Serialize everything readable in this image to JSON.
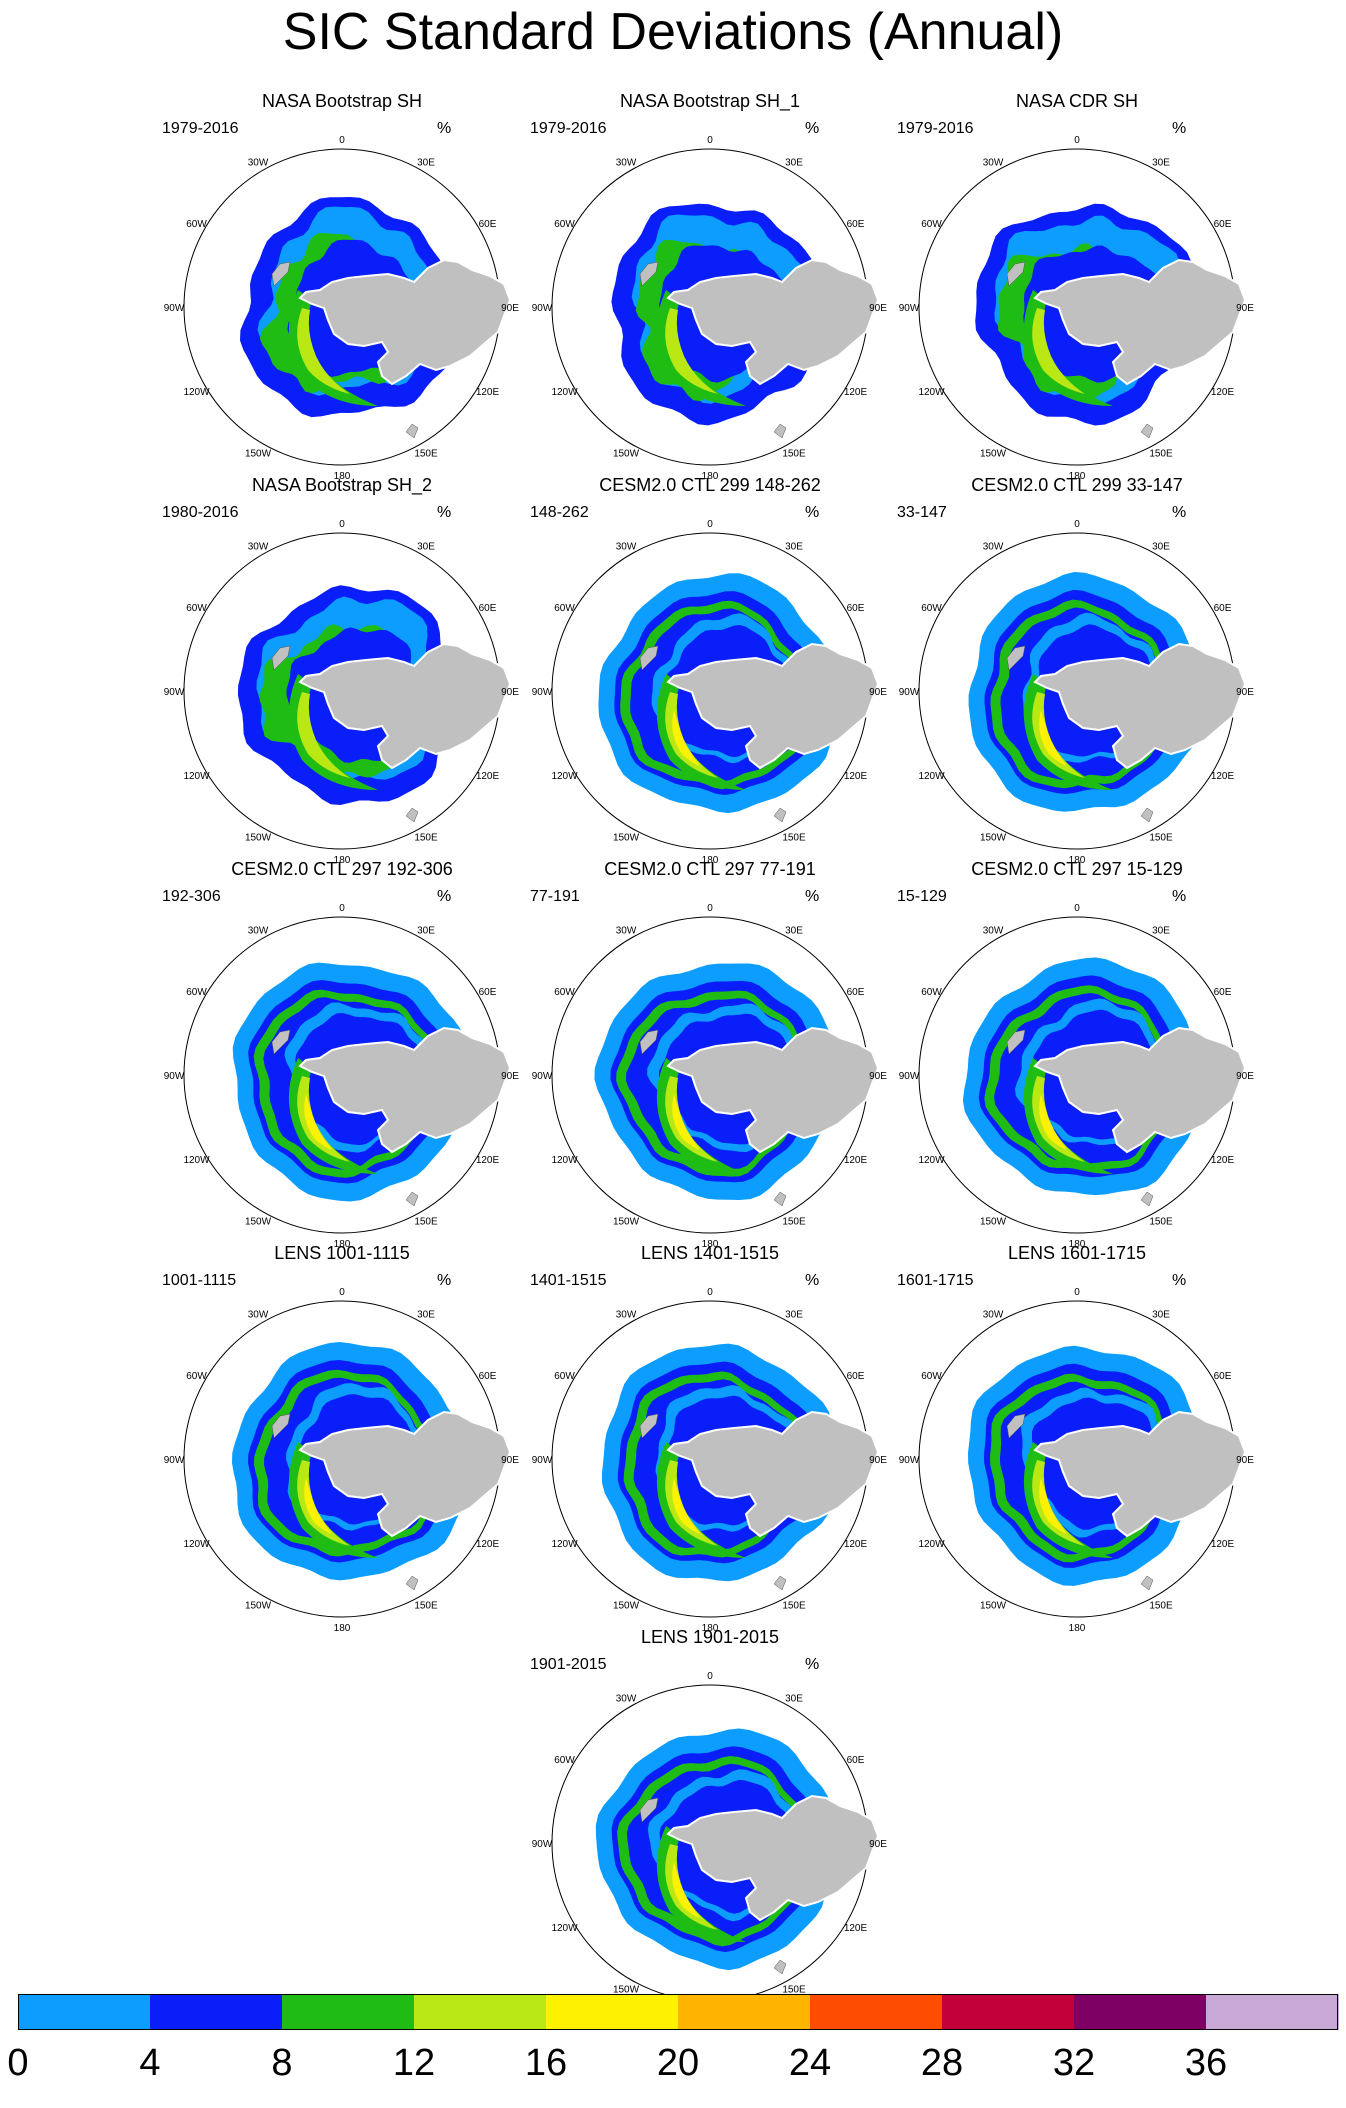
{
  "title": "SIC Standard Deviations (Annual)",
  "unit": "%",
  "axis_labels": {
    "top": "0",
    "30W": "30W",
    "30E": "30E",
    "60W": "60W",
    "60E": "60E",
    "90W": "90W",
    "90E": "90E",
    "120W": "120W",
    "120E": "120E",
    "150W": "150W",
    "150E": "150E",
    "bottom": "180"
  },
  "colors": {
    "0-4": "#0c9dff",
    "4-8": "#0a1efa",
    "8-12": "#1fbd14",
    "12-16": "#b9e815",
    "16-20": "#fff200",
    "20-24": "#ffb400",
    "24-28": "#ff4d00",
    "28-32": "#c2003a",
    "32-36": "#7f0065",
    ">36": "#c9a9d6",
    "land": "#c0c0c0"
  },
  "chart_data": {
    "type": "heatmap",
    "projection": "south-polar-stereographic",
    "panels": [
      {
        "title": "NASA Bootstrap SH",
        "years": "1979-2016",
        "kind": "obs"
      },
      {
        "title": "NASA Bootstrap SH_1",
        "years": "1979-2016",
        "kind": "obs"
      },
      {
        "title": "NASA CDR SH",
        "years": "1979-2016",
        "kind": "obs"
      },
      {
        "title": "NASA Bootstrap SH_2",
        "years": "1980-2016",
        "kind": "obs"
      },
      {
        "title": "CESM2.0 CTL 299 148-262",
        "years": "148-262",
        "kind": "model"
      },
      {
        "title": "CESM2.0 CTL 299 33-147",
        "years": "33-147",
        "kind": "model"
      },
      {
        "title": "CESM2.0 CTL 297 192-306",
        "years": "192-306",
        "kind": "model"
      },
      {
        "title": "CESM2.0 CTL 297 77-191",
        "years": "77-191",
        "kind": "model"
      },
      {
        "title": "CESM2.0 CTL 297 15-129",
        "years": "15-129",
        "kind": "model"
      },
      {
        "title": "LENS 1001-1115",
        "years": "1001-1115",
        "kind": "model"
      },
      {
        "title": "LENS 1401-1515",
        "years": "1401-1515",
        "kind": "model"
      },
      {
        "title": "LENS 1601-1715",
        "years": "1601-1715",
        "kind": "model"
      },
      {
        "title": "LENS 1901-2015",
        "years": "1901-2015",
        "kind": "model"
      }
    ],
    "colorbar": {
      "levels": [
        0,
        4,
        8,
        12,
        16,
        20,
        24,
        28,
        32,
        36
      ],
      "tick_labels": [
        "0",
        "4",
        "8",
        "12",
        "16",
        "20",
        "24",
        "28",
        "32",
        "36"
      ],
      "colors": [
        "#0c9dff",
        "#0a1efa",
        "#1fbd14",
        "#b9e815",
        "#fff200",
        "#ffb400",
        "#ff4d00",
        "#c2003a",
        "#7f0065",
        "#c9a9d6"
      ]
    }
  }
}
